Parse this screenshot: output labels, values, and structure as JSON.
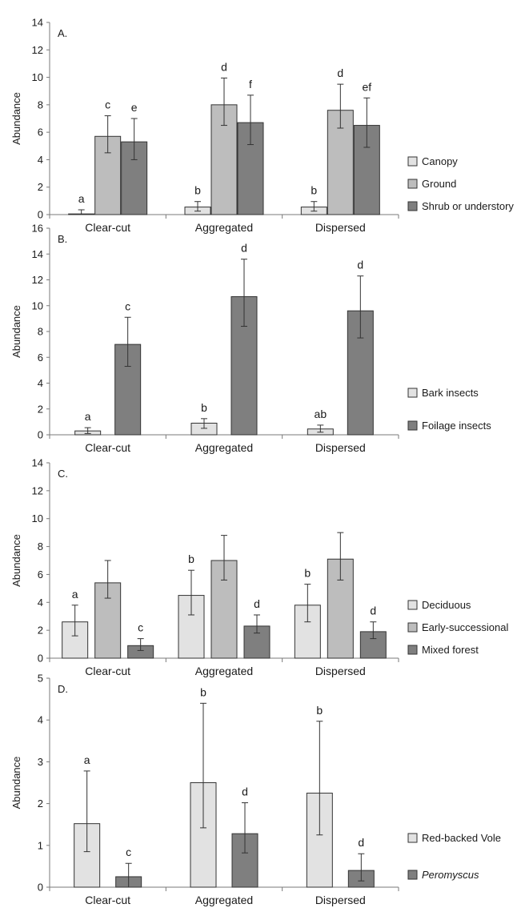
{
  "chart_data": [
    {
      "type": "bar",
      "panel_label": "A.",
      "ylabel": "Abundance",
      "categories": [
        "Clear-cut",
        "Aggregated",
        "Dispersed"
      ],
      "ylim": [
        0,
        14
      ],
      "yticks": [
        0,
        2,
        4,
        6,
        8,
        10,
        12,
        14
      ],
      "series": [
        {
          "name": "Canopy",
          "color": "#e2e2e2",
          "values": [
            0.05,
            0.55,
            0.55
          ],
          "err_low": [
            0.0,
            0.25,
            0.25
          ],
          "err_high": [
            0.35,
            0.95,
            0.95
          ],
          "letters": [
            "a",
            "b",
            "b"
          ]
        },
        {
          "name": "Ground",
          "color": "#bdbdbd",
          "values": [
            5.7,
            8.0,
            7.6
          ],
          "err_low": [
            4.5,
            6.5,
            6.3
          ],
          "err_high": [
            7.2,
            9.95,
            9.5
          ],
          "letters": [
            "c",
            "d",
            "d"
          ]
        },
        {
          "name": "Shrub or understory",
          "color": "#7f7f7f",
          "values": [
            5.3,
            6.7,
            6.5
          ],
          "err_low": [
            4.0,
            5.1,
            4.9
          ],
          "err_high": [
            7.0,
            8.7,
            8.5
          ],
          "letters": [
            "e",
            "f",
            "ef"
          ]
        }
      ]
    },
    {
      "type": "bar",
      "panel_label": "B.",
      "ylabel": "Abundance",
      "categories": [
        "Clear-cut",
        "Aggregated",
        "Dispersed"
      ],
      "ylim": [
        0,
        16
      ],
      "yticks": [
        0,
        2,
        4,
        6,
        8,
        10,
        12,
        14,
        16
      ],
      "series": [
        {
          "name": "Bark insects",
          "color": "#e2e2e2",
          "values": [
            0.3,
            0.9,
            0.45
          ],
          "err_low": [
            0.1,
            0.5,
            0.2
          ],
          "err_high": [
            0.55,
            1.25,
            0.75
          ],
          "letters": [
            "a",
            "b",
            "ab"
          ]
        },
        {
          "name": "Foilage insects",
          "color": "#7f7f7f",
          "values": [
            7.0,
            10.7,
            9.6
          ],
          "err_low": [
            5.3,
            8.4,
            7.5
          ],
          "err_high": [
            9.1,
            13.6,
            12.3
          ],
          "letters": [
            "c",
            "d",
            "d"
          ]
        }
      ]
    },
    {
      "type": "bar",
      "panel_label": "C.",
      "ylabel": "Abundance",
      "categories": [
        "Clear-cut",
        "Aggregated",
        "Dispersed"
      ],
      "ylim": [
        0,
        14
      ],
      "yticks": [
        0,
        2,
        4,
        6,
        8,
        10,
        12,
        14
      ],
      "series": [
        {
          "name": "Deciduous",
          "color": "#e2e2e2",
          "values": [
            2.6,
            4.5,
            3.8
          ],
          "err_low": [
            1.6,
            3.1,
            2.6
          ],
          "err_high": [
            3.8,
            6.3,
            5.3
          ],
          "letters": [
            "a",
            "b",
            "b"
          ]
        },
        {
          "name": "Early-successional",
          "color": "#bdbdbd",
          "values": [
            5.4,
            7.0,
            7.1
          ],
          "err_low": [
            4.3,
            5.6,
            5.6
          ],
          "err_high": [
            7.0,
            8.8,
            9.0
          ],
          "letters": [
            "",
            "",
            ""
          ]
        },
        {
          "name": "Mixed forest",
          "color": "#7f7f7f",
          "values": [
            0.9,
            2.3,
            1.9
          ],
          "err_low": [
            0.55,
            1.8,
            1.4
          ],
          "err_high": [
            1.4,
            3.1,
            2.6
          ],
          "letters": [
            "c",
            "d",
            "d"
          ]
        }
      ]
    },
    {
      "type": "bar",
      "panel_label": "D.",
      "ylabel": "Abundance",
      "categories": [
        "Clear-cut",
        "Aggregated",
        "Dispersed"
      ],
      "ylim": [
        0,
        5
      ],
      "yticks": [
        0,
        1,
        2,
        3,
        4,
        5
      ],
      "series": [
        {
          "name": "Red-backed Vole",
          "color": "#e2e2e2",
          "italic": false,
          "values": [
            1.52,
            2.5,
            2.25
          ],
          "err_low": [
            0.85,
            1.42,
            1.25
          ],
          "err_high": [
            2.78,
            4.4,
            3.97
          ],
          "letters": [
            "a",
            "b",
            "b"
          ]
        },
        {
          "name": "Peromyscus",
          "color": "#7f7f7f",
          "italic": true,
          "values": [
            0.25,
            1.28,
            0.4
          ],
          "err_low": [
            0.0,
            0.82,
            0.15
          ],
          "err_high": [
            0.57,
            2.02,
            0.8
          ],
          "letters": [
            "c",
            "d",
            "d"
          ]
        }
      ]
    }
  ]
}
